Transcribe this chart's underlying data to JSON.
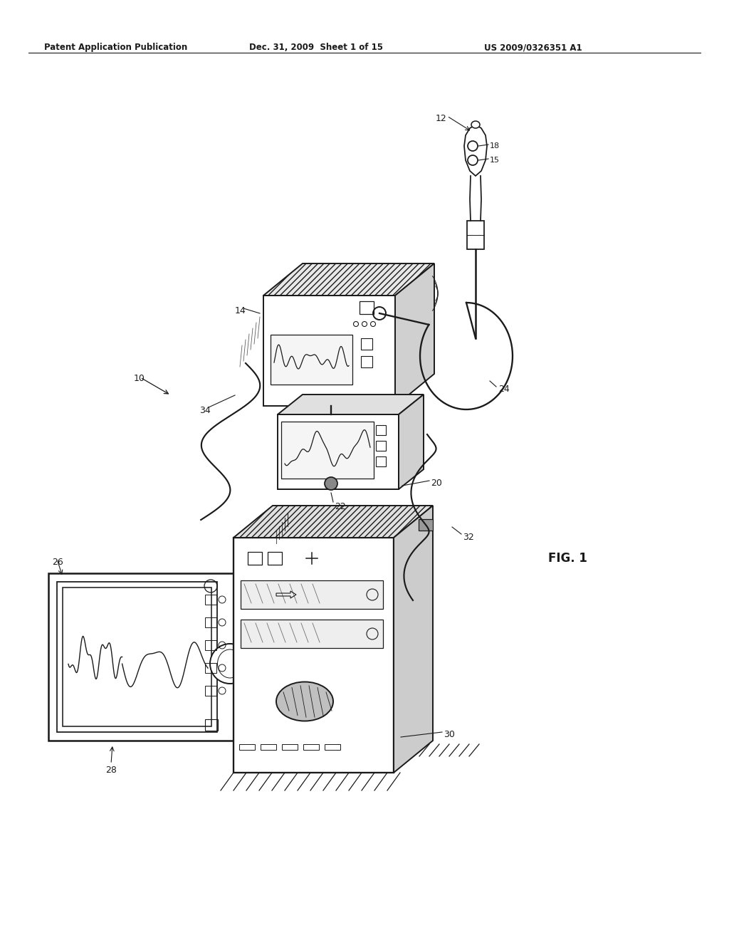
{
  "background_color": "#ffffff",
  "header_left": "Patent Application Publication",
  "header_mid": "Dec. 31, 2009  Sheet 1 of 15",
  "header_right": "US 2009/0326351 A1",
  "fig_label": "FIG. 1",
  "line_color": "#1a1a1a",
  "line_width": 1.4
}
